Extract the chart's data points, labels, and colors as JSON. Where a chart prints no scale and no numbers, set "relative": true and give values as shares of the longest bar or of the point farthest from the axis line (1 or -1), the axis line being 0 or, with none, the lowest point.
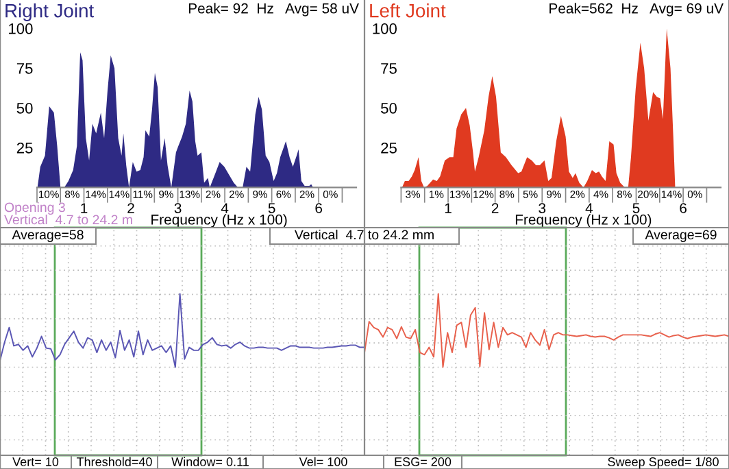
{
  "chart_data": [
    {
      "type": "area",
      "title": "Right Joint",
      "subtitle": "Peak= 92  Hz   Avg= 58 uV",
      "xlabel": "Frequency (Hz x 100)",
      "series": [
        {
          "color": "#2e2a84",
          "x": [
            0.01,
            0.07,
            0.17,
            0.26,
            0.36,
            0.43,
            0.5,
            0.58,
            0.67,
            0.77,
            0.85,
            0.92,
            0.97,
            1.04,
            1.11,
            1.18,
            1.26,
            1.36,
            1.43,
            1.5,
            1.57,
            1.65,
            1.73,
            1.8,
            1.84,
            1.9,
            1.96,
            2.04,
            2.12,
            2.2,
            2.27,
            2.31,
            2.39,
            2.45,
            2.51,
            2.57,
            2.64,
            2.72,
            2.78,
            2.86,
            2.96,
            3.01,
            3.09,
            3.17,
            3.25,
            3.31,
            3.37,
            3.42,
            3.5,
            3.56,
            3.64,
            3.68,
            3.8,
            3.89,
            3.99,
            4.19,
            4.28,
            4.38,
            4.46,
            4.54,
            4.65,
            4.72,
            4.79,
            4.87,
            4.95,
            5.04,
            5.11,
            5.18,
            5.3,
            5.38,
            5.45,
            5.53,
            5.57,
            5.63,
            5.7,
            5.8,
            5.84,
            5.88
          ],
          "values": [
            0,
            13,
            20,
            51,
            47,
            26,
            0,
            0,
            4,
            11,
            26,
            85,
            80,
            31,
            17,
            40,
            34,
            47,
            31,
            60,
            83,
            75,
            31,
            20,
            34,
            14,
            0,
            16,
            10,
            11,
            19,
            36,
            32,
            49,
            72,
            63,
            17,
            31,
            14,
            0,
            22,
            26,
            32,
            40,
            61,
            54,
            29,
            20,
            22,
            3,
            6,
            0,
            9,
            16,
            13,
            3,
            0,
            0,
            13,
            10,
            46,
            57,
            49,
            20,
            16,
            4,
            9,
            19,
            29,
            19,
            13,
            20,
            24,
            4,
            1,
            1,
            2,
            0
          ]
        }
      ],
      "xlim": [
        0,
        6.8
      ],
      "ylim": [
        0,
        100
      ],
      "xticks": [
        {
          "value": 0,
          "label": null
        },
        {
          "value": 0.5,
          "label": null
        },
        1,
        {
          "value": 1.5,
          "label": null
        },
        2,
        {
          "value": 2.5,
          "label": null
        },
        3,
        {
          "value": 3.5,
          "label": null
        },
        4,
        {
          "value": 4.5,
          "label": null
        },
        5,
        {
          "value": 5.5,
          "label": null
        },
        6,
        {
          "value": 6.5,
          "label": null
        }
      ],
      "yticks": [
        25,
        50,
        75,
        100
      ],
      "annotations": [
        "10%",
        "8%",
        "14%",
        "14%",
        "11%",
        "9%",
        "13%",
        "2%",
        "2%",
        "9%",
        "6%",
        "2%",
        "0%",
        "Opening 3",
        "Vertical  4.7 to 24.2 m"
      ]
    },
    {
      "type": "area",
      "title": "Left Joint",
      "subtitle": "Peak=562  Hz   Avg= 69 uV",
      "xlabel": "Frequency (Hz x 100)",
      "series": [
        {
          "color": "#e03a20",
          "x": [
            0.02,
            0.08,
            0.16,
            0.23,
            0.29,
            0.37,
            0.43,
            0.49,
            0.56,
            0.68,
            0.76,
            0.83,
            0.93,
            1.03,
            1.11,
            1.18,
            1.28,
            1.38,
            1.46,
            1.53,
            1.57,
            1.65,
            1.77,
            1.86,
            1.94,
            2.02,
            2.12,
            2.23,
            2.35,
            2.49,
            2.56,
            2.68,
            2.78,
            2.87,
            2.95,
            3.05,
            3.13,
            3.2,
            3.3,
            3.4,
            3.5,
            3.57,
            3.65,
            3.71,
            3.79,
            3.88,
            3.96,
            4.06,
            4.14,
            4.21,
            4.27,
            4.35,
            4.43,
            4.52,
            4.58,
            4.66,
            4.76,
            4.83,
            4.89,
            4.99,
            5.09,
            5.17,
            5.26,
            5.36,
            5.44,
            5.51,
            5.57,
            5.65,
            5.73,
            5.79,
            5.83
          ],
          "values": [
            0,
            4,
            4,
            7,
            11,
            19,
            4,
            0,
            1,
            5,
            4,
            7,
            17,
            19,
            19,
            37,
            46,
            50,
            39,
            22,
            10,
            19,
            36,
            57,
            70,
            57,
            22,
            19,
            14,
            9,
            10,
            19,
            17,
            14,
            14,
            17,
            4,
            6,
            29,
            45,
            32,
            10,
            6,
            9,
            3,
            0,
            4,
            11,
            9,
            10,
            7,
            4,
            29,
            27,
            9,
            3,
            0,
            0,
            19,
            62,
            91,
            75,
            42,
            60,
            57,
            56,
            43,
            100,
            75,
            32,
            0
          ]
        }
      ],
      "xlim": [
        0,
        6.8
      ],
      "ylim": [
        0,
        100
      ],
      "xticks": [
        {
          "value": 0,
          "label": null
        },
        {
          "value": 0.5,
          "label": null
        },
        1,
        {
          "value": 1.5,
          "label": null
        },
        2,
        {
          "value": 2.5,
          "label": null
        },
        3,
        {
          "value": 3.5,
          "label": null
        },
        4,
        {
          "value": 4.5,
          "label": null
        },
        5,
        {
          "value": 5.5,
          "label": null
        },
        6,
        {
          "value": 6.5,
          "label": null
        }
      ],
      "yticks": [
        25,
        50,
        75,
        100
      ],
      "annotations": [
        "3%",
        "1%",
        "13%",
        "12%",
        "8%",
        "5%",
        "9%",
        "2%",
        "4%",
        "8%",
        "20%",
        "14%",
        "0%"
      ]
    },
    {
      "type": "line",
      "relative": true,
      "tick_labels": false,
      "grid": true,
      "categories": [
        null,
        null,
        null,
        null,
        null,
        null,
        null,
        null,
        null,
        null,
        null,
        null,
        null,
        null,
        null,
        null,
        null,
        null,
        null,
        null,
        null,
        null,
        null,
        null,
        null,
        null,
        null,
        null,
        null,
        null,
        null,
        null,
        null,
        null,
        null,
        null,
        null,
        null,
        null,
        null,
        null,
        null,
        null,
        null,
        null,
        null,
        null,
        null,
        null,
        null,
        null,
        null,
        null,
        null,
        null,
        null,
        null,
        null,
        null,
        null,
        null,
        null,
        null,
        null,
        null,
        null,
        null,
        null,
        null,
        null,
        null,
        null,
        null,
        null,
        null,
        null,
        null,
        null,
        null,
        null
      ],
      "series": [
        {
          "color": "#5a56b4",
          "values": [
            0.09,
            0.34,
            0.54,
            0.29,
            0.31,
            0.23,
            0.29,
            0.14,
            0.26,
            0.42,
            0.26,
            0.25,
            0.1,
            0.17,
            0.31,
            0.4,
            0.49,
            0.34,
            0.26,
            0.4,
            0.37,
            0.2,
            0.37,
            0.23,
            0.34,
            0.13,
            0.5,
            0.23,
            0.37,
            0.14,
            0.49,
            0.17,
            0.37,
            0.23,
            0.26,
            0.29,
            0.2,
            0.29,
            0,
            1,
            0.11,
            0.27,
            0.23,
            0.23,
            0.31,
            0.34,
            0.4,
            0.31,
            0.29,
            0.3,
            0.26,
            0.31,
            0.34,
            0.29,
            0.26,
            0.26,
            0.27,
            0.27,
            0.26,
            0.26,
            0.26,
            0.23,
            0.26,
            0.29,
            0.29,
            0.27,
            0.27,
            0.27,
            0.26,
            0.26,
            0.26,
            0.27,
            0.27,
            0.28,
            0.29,
            0.29,
            0.3,
            0.3,
            0.27,
            0.27
          ]
        }
      ],
      "annotations": [
        "Average=58",
        "Vertical  4.7 to 24.2 mm",
        "Vert= 10",
        "Threshold=40",
        "Window= 0.11",
        "Vel= 100"
      ]
    },
    {
      "type": "line",
      "relative": true,
      "tick_labels": false,
      "grid": true,
      "categories": [
        null,
        null,
        null,
        null,
        null,
        null,
        null,
        null,
        null,
        null,
        null,
        null,
        null,
        null,
        null,
        null,
        null,
        null,
        null,
        null,
        null,
        null,
        null,
        null,
        null,
        null,
        null,
        null,
        null,
        null,
        null,
        null,
        null,
        null,
        null,
        null,
        null,
        null,
        null,
        null,
        null,
        null,
        null,
        null,
        null,
        null,
        null,
        null,
        null,
        null,
        null,
        null,
        null,
        null,
        null,
        null,
        null,
        null,
        null,
        null,
        null,
        null,
        null,
        null,
        null,
        null,
        null,
        null,
        null,
        null,
        null,
        null,
        null,
        null,
        null,
        null,
        null,
        null,
        null,
        null
      ],
      "series": [
        {
          "color": "#e8604c",
          "values": [
            0.2,
            0.62,
            0.54,
            0.51,
            0.41,
            0.54,
            0.51,
            0.39,
            0.55,
            0.41,
            0.39,
            0.51,
            0.2,
            0.17,
            0.27,
            0.14,
            1,
            0,
            0.47,
            0.2,
            0.57,
            0.61,
            0.27,
            0.71,
            0.81,
            0.01,
            0.74,
            0.24,
            0.61,
            0.27,
            0.54,
            0.44,
            0.47,
            0.44,
            0.41,
            0.27,
            0.47,
            0.37,
            0.3,
            0.51,
            0.24,
            0.44,
            0.47,
            0.44,
            0.44,
            0.43,
            0.42,
            0.43,
            0.44,
            0.42,
            0.41,
            0.42,
            0.42,
            0.4,
            0.37,
            0.41,
            0.44,
            0.44,
            0.44,
            0.44,
            0.44,
            0.43,
            0.42,
            0.45,
            0.47,
            0.44,
            0.41,
            0.43,
            0.44,
            0.41,
            0.39,
            0.41,
            0.42,
            0.43,
            0.44,
            0.43,
            0.42,
            0.43,
            0.44,
            0.42
          ]
        }
      ],
      "annotations": [
        "Average=69",
        "ESG= 200",
        "Sweep Speed= 1/80"
      ]
    }
  ]
}
